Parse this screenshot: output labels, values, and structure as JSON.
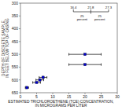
{
  "chart_data": {
    "type": "scatter",
    "xlabel": "ESTIMATED TRICHLOROETHENE (TCE) CONCENTRATION,\nIN MICROGRAMS PER LITER",
    "ylabel": "DEPTH OF DISCRETE SAMPLE,\nIN FEET BELOW TOP OF CASING",
    "xlim": [
      0,
      30
    ],
    "ylim": [
      650,
      300
    ],
    "xticks": [
      0,
      5,
      10,
      15,
      20,
      25,
      30
    ],
    "yticks": [
      300,
      350,
      400,
      450,
      500,
      550,
      600,
      650
    ],
    "x": [
      2.0,
      5.0,
      6.0,
      7.0,
      20.0,
      20.0
    ],
    "values": [
      630,
      610,
      600,
      590,
      500,
      540
    ],
    "xerr": [
      0.5,
      1.2,
      1.2,
      1.2,
      5.0,
      5.0
    ],
    "color": "#0000cc",
    "marker": "square",
    "brackets": {
      "values": [
        16.4,
        21.8,
        27.3
      ],
      "labels": [
        "25\npercent",
        "25\npercent"
      ]
    }
  }
}
